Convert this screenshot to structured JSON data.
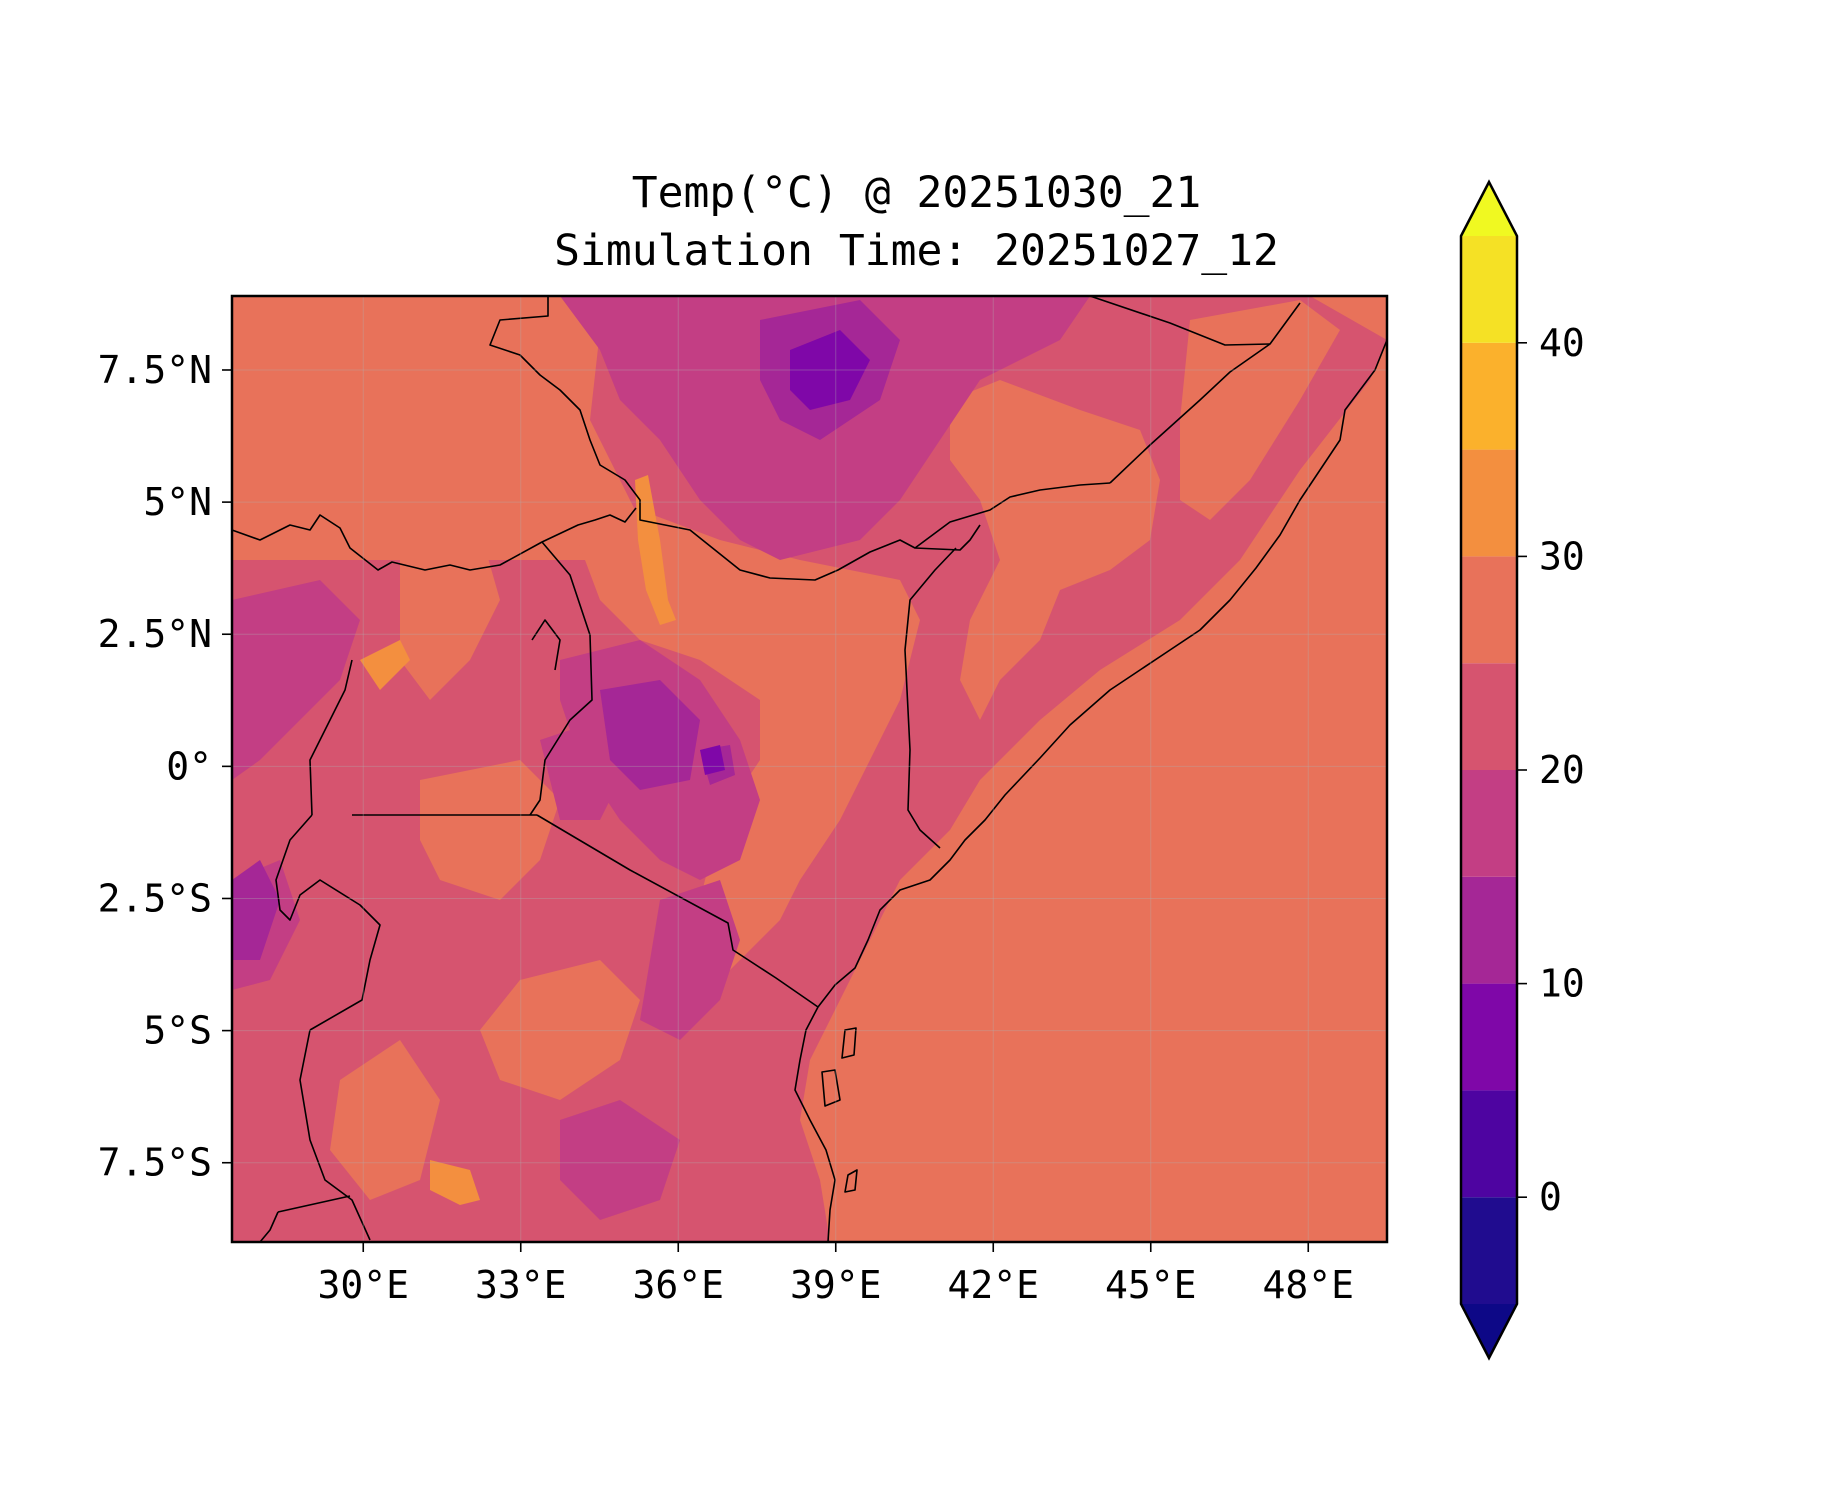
{
  "title": {
    "line1": "Temp(°C) @ 20251030_21",
    "line2": "Simulation Time: 20251027_12"
  },
  "map": {
    "region": "East Africa",
    "lon_range": [
      27.5,
      49.5
    ],
    "lat_range": [
      -9.0,
      8.9
    ],
    "lon_ticks": [
      30,
      33,
      36,
      39,
      42,
      45,
      48
    ],
    "lon_tick_labels": [
      "30°E",
      "33°E",
      "36°E",
      "39°E",
      "42°E",
      "45°E",
      "48°E"
    ],
    "lat_ticks": [
      7.5,
      5,
      2.5,
      0,
      -2.5,
      -5,
      -7.5
    ],
    "lat_tick_labels": [
      "7.5°N",
      "5°N",
      "2.5°N",
      "0°",
      "2.5°S",
      "5°S",
      "7.5°S"
    ],
    "gridlines": true,
    "ocean_fill_band": "25-30",
    "variable": "Temperature",
    "units": "°C"
  },
  "colorbar": {
    "levels": [
      -5,
      0,
      5,
      10,
      15,
      20,
      25,
      30,
      35,
      40,
      45
    ],
    "tick_values": [
      0,
      10,
      20,
      30,
      40
    ],
    "tick_labels": [
      "0",
      "10",
      "20",
      "30",
      "40"
    ],
    "band_colors": [
      "#200c8f",
      "#4e04a1",
      "#7f07a8",
      "#a52796",
      "#c33e84",
      "#d6546f",
      "#e8725a",
      "#f38f3f",
      "#fbb12c",
      "#f5e125"
    ],
    "under_color": "#0d0887",
    "over_color": "#f0f921",
    "extend": "both"
  },
  "colors": {
    "ocean": "#e8725a",
    "land_mid": "#d6546f",
    "land_warm": "#e8725a",
    "highland_cool": "#c33e84",
    "highland_cold": "#a52796",
    "peaks": "#7f07a8",
    "hot_strip": "#f38f3f",
    "border": "#000000"
  }
}
